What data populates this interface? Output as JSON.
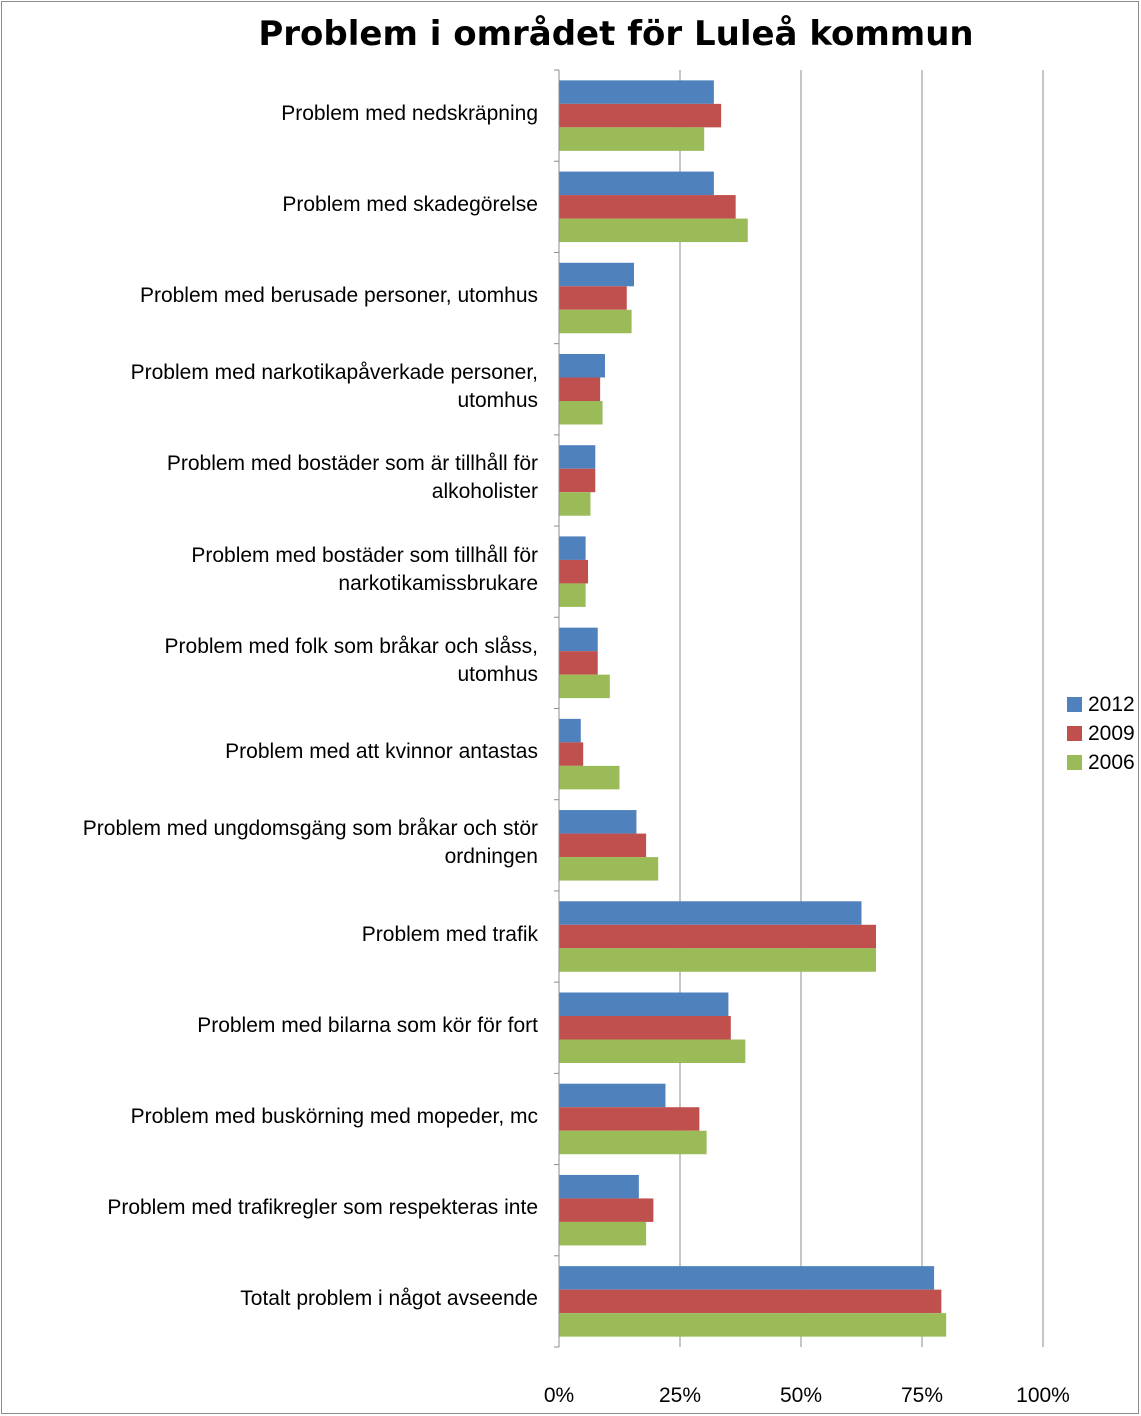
{
  "chart_data": {
    "type": "bar",
    "orientation": "horizontal",
    "title": "Problem i området för Luleå kommun",
    "categories": [
      "Problem med nedskräpning",
      "Problem med skadegörelse",
      "Problem med berusade personer, utomhus",
      "Problem med narkotikapåverkade personer, utomhus",
      "Problem med bostäder som är tillhåll för alkoholister",
      "Problem med bostäder som tillhåll för narkotikamissbrukare",
      "Problem med folk som bråkar och slåss, utomhus",
      "Problem med att kvinnor antastas",
      "Problem med ungdomsgäng som bråkar och stör ordningen",
      "Problem med trafik",
      "Problem med bilarna som kör för fort",
      "Problem med buskörning med mopeder, mc",
      "Problem med trafikregler som respekteras inte",
      "Totalt problem i något avseende"
    ],
    "category_lines": [
      [
        "Problem med nedskräpning"
      ],
      [
        "Problem med skadegörelse"
      ],
      [
        "Problem med berusade personer, utomhus"
      ],
      [
        "Problem med narkotikapåverkade personer,",
        "utomhus"
      ],
      [
        "Problem med bostäder som är tillhåll för",
        "alkoholister"
      ],
      [
        "Problem med bostäder som tillhåll för",
        "narkotikamissbrukare"
      ],
      [
        "Problem med folk som bråkar och slåss,",
        "utomhus"
      ],
      [
        "Problem med att kvinnor antastas"
      ],
      [
        "Problem med ungdomsgäng som bråkar och stör",
        "ordningen"
      ],
      [
        "Problem med trafik"
      ],
      [
        "Problem med bilarna som kör för fort"
      ],
      [
        "Problem med buskörning med mopeder, mc"
      ],
      [
        "Problem med trafikregler som respekteras inte"
      ],
      [
        "Totalt problem i något avseende"
      ]
    ],
    "series": [
      {
        "name": "2012",
        "color": "#4f81bd",
        "values": [
          32,
          32,
          15.5,
          9.5,
          7.5,
          5.5,
          8,
          4.5,
          16,
          62.5,
          35,
          22,
          16.5,
          77.5
        ]
      },
      {
        "name": "2009",
        "color": "#c0504d",
        "values": [
          33.5,
          36.5,
          14,
          8.5,
          7.5,
          6,
          8,
          5,
          18,
          65.5,
          35.5,
          29,
          19.5,
          79
        ]
      },
      {
        "name": "2006",
        "color": "#9bbb59",
        "values": [
          30,
          39,
          15,
          9,
          6.5,
          5.5,
          10.5,
          12.5,
          20.5,
          65.5,
          38.5,
          30.5,
          18,
          80
        ]
      }
    ],
    "xlim": [
      0,
      100
    ],
    "x_ticks": [
      "0%",
      "25%",
      "50%",
      "75%",
      "100%"
    ],
    "grid": true,
    "legend_position": "right"
  }
}
